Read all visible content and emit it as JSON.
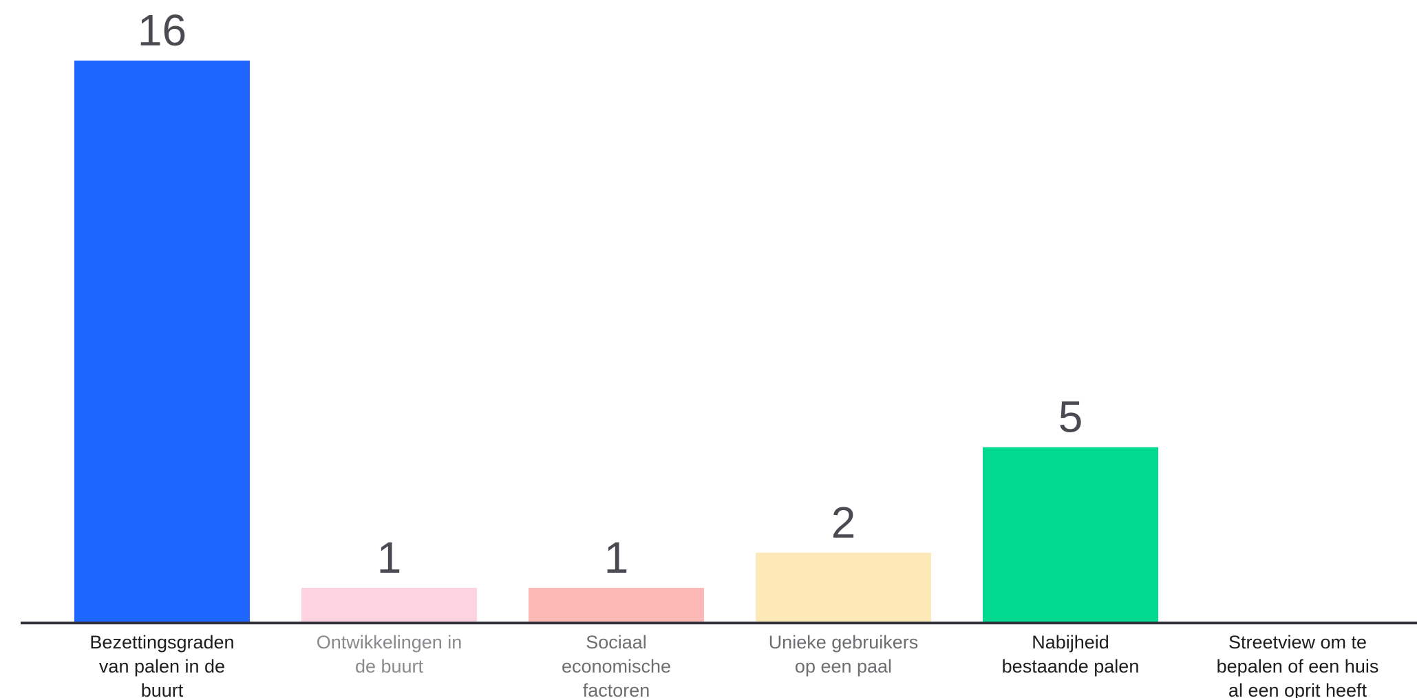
{
  "chart_data": {
    "type": "bar",
    "title": "",
    "xlabel": "",
    "ylabel": "",
    "ylim": [
      0,
      16
    ],
    "grid": false,
    "legend": "none",
    "categories": [
      "Bezettingsgraden van palen in de buurt",
      "Ontwikkelingen in de buurt",
      "Sociaal economische factoren",
      "Unieke gebruikers op een paal",
      "Nabijheid bestaande palen",
      "Streetview om te bepalen of een huis al een oprit heeft"
    ],
    "category_lines": [
      [
        "Bezettingsgraden",
        "van palen in de",
        "buurt"
      ],
      [
        "Ontwikkelingen in",
        "de buurt"
      ],
      [
        "Sociaal",
        "economische",
        "factoren"
      ],
      [
        "Unieke gebruikers",
        "op een paal"
      ],
      [
        "Nabijheid",
        "bestaande palen"
      ],
      [
        "Streetview om te",
        "bepalen of een huis",
        "al een oprit heeft"
      ]
    ],
    "values": [
      16,
      1,
      1,
      2,
      5,
      0
    ],
    "value_labels": [
      "16",
      "1",
      "1",
      "2",
      "5",
      ""
    ],
    "bar_colors": [
      "#1e66ff",
      "#fdd3e1",
      "#fdb9b6",
      "#fde9b8",
      "#00d98f",
      "#cccccc"
    ],
    "label_colors": [
      "#1d1d1f",
      "#8a8a8e",
      "#6e6e72",
      "#6e6e72",
      "#1d1d1f",
      "#1d1d1f"
    ],
    "axis_color": "#2e2f3a"
  }
}
